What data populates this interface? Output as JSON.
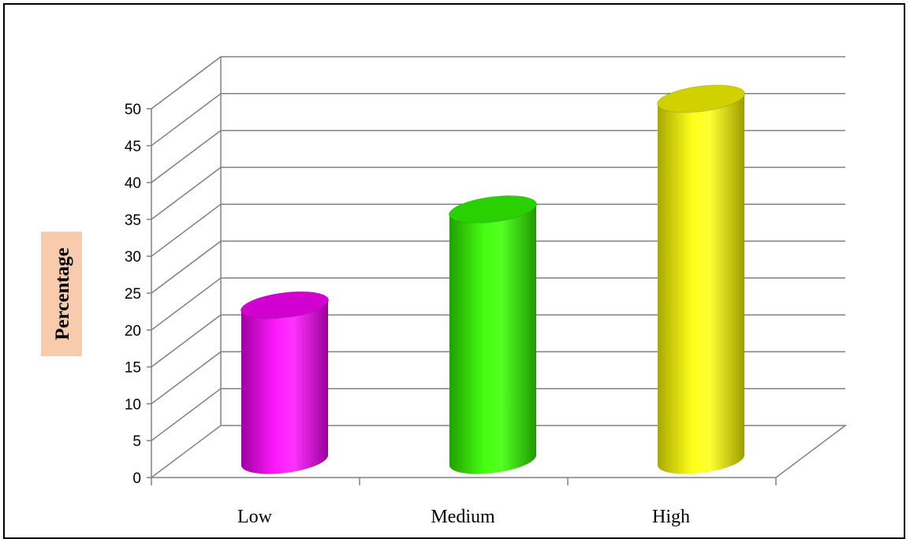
{
  "chart_data": {
    "type": "bar",
    "style": "3d-cylinder",
    "categories": [
      "Low",
      "Medium",
      "High"
    ],
    "values": [
      21,
      34,
      49
    ],
    "title": "",
    "xlabel": "",
    "ylabel": "Percentage",
    "ylim": [
      0,
      50
    ],
    "yticks": [
      0,
      5,
      10,
      15,
      20,
      25,
      30,
      35,
      40,
      45,
      50
    ],
    "ytick_labels": [
      "0",
      "5",
      "10",
      "15",
      "20",
      "25",
      "30",
      "35",
      "40",
      "45",
      "50"
    ],
    "grid": true,
    "legend": "none",
    "colors": [
      "#ff00ff",
      "#33ff00",
      "#ffff00"
    ],
    "ylabel_background": "#f8cbad"
  }
}
